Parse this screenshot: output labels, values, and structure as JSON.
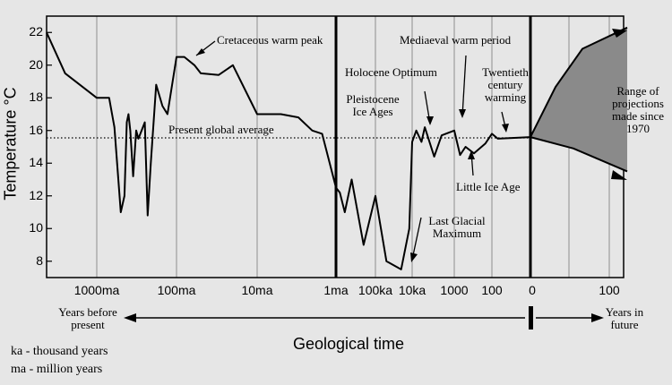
{
  "chart_data": {
    "type": "line",
    "ylabel": "Temperature °C",
    "xlabel": "Geological time",
    "ylim": [
      7,
      23
    ],
    "y_ticks": [
      8,
      10,
      12,
      14,
      16,
      18,
      20,
      22
    ],
    "x_tick_labels": [
      "1000ma",
      "100ma",
      "10ma",
      "1ma",
      "100ka",
      "10ka",
      "1000",
      "100",
      "0",
      "100"
    ],
    "x_scale": "log-time before present, linear future",
    "grid": "vertical lines at x ticks",
    "present_global_average": 15.6,
    "past_series": {
      "name": "",
      "x_years_before_present": [
        3000000000,
        2000000000,
        1000000000,
        700000000,
        600000000,
        500000000,
        450000000,
        420000000,
        400000000,
        380000000,
        350000000,
        320000000,
        300000000,
        250000000,
        230000000,
        210000000,
        180000000,
        150000000,
        130000000,
        100000000,
        80000000,
        60000000,
        50000000,
        30000000,
        20000000,
        10000000,
        5000000,
        3000000,
        2000000,
        1500000,
        1000000,
        800000,
        600000,
        400000,
        200000,
        100000,
        50000,
        20000,
        12000,
        10000,
        8000,
        6000,
        5000,
        3000,
        2000,
        1000,
        700,
        500,
        300,
        150,
        100,
        50,
        0
      ],
      "temperature_c": [
        22,
        19.5,
        18,
        18,
        16.2,
        11,
        12,
        16.5,
        17,
        16,
        13.2,
        16,
        15.5,
        16.5,
        10.8,
        14,
        18.8,
        17.5,
        17,
        20.5,
        20.5,
        20,
        19.5,
        19.4,
        20,
        17,
        17,
        16.8,
        16,
        15.8,
        12.5,
        12.2,
        11,
        13,
        9,
        12,
        8,
        7.5,
        10,
        15.3,
        16,
        15.3,
        16.2,
        14.4,
        15.7,
        16,
        14.5,
        15,
        14.6,
        15.2,
        15.8,
        15.5,
        15.6
      ]
    },
    "projections": {
      "x_years_in_future": [
        0,
        100
      ],
      "upper_c": [
        15.6,
        22.3
      ],
      "lower_c": [
        15.6,
        13.5
      ]
    },
    "annotations": [
      "Cretaceous warm peak",
      "Present global average",
      "Pleistocene Ice Ages",
      "Holocene Optimum",
      "Mediaeval warm period",
      "Twentieth century warming",
      "Little Ice Age",
      "Last Glacial Maximum",
      "Range of projections made since 1970"
    ]
  },
  "labels": {
    "ylabel": "Temperature °C",
    "xlabel": "Geological time",
    "cretaceous": "Cretaceous warm peak",
    "present_avg": "Present global average",
    "pleistocene_1": "Pleistocene",
    "pleistocene_2": "Ice Ages",
    "holocene": "Holocene Optimum",
    "mediaeval": "Mediaeval warm period",
    "twentieth_1": "Twentieth",
    "twentieth_2": "century",
    "twentieth_3": "warming",
    "little_ice": "Little Ice Age",
    "lgm_1": "Last Glacial",
    "lgm_2": "Maximum",
    "range_1": "Range of",
    "range_2": "projections",
    "range_3": "made since",
    "range_4": "1970",
    "ybp_1": "Years before",
    "ybp_2": "present",
    "future_1": "Years in",
    "future_2": "future",
    "ka": "ka  - thousand years",
    "ma": "ma - million years"
  }
}
